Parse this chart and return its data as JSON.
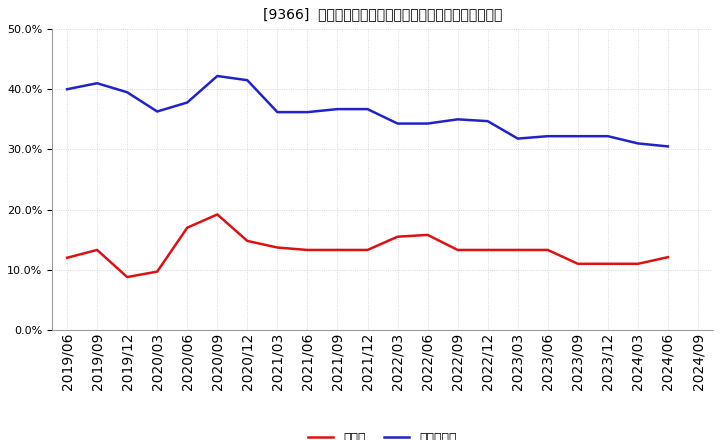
{
  "title": "[9366]  現預金、有利子負債の総資産に対する比率の推移",
  "x_labels": [
    "2019/06",
    "2019/09",
    "2019/12",
    "2020/03",
    "2020/06",
    "2020/09",
    "2020/12",
    "2021/03",
    "2021/06",
    "2021/09",
    "2021/12",
    "2022/03",
    "2022/06",
    "2022/09",
    "2022/12",
    "2023/03",
    "2023/06",
    "2023/09",
    "2023/12",
    "2024/03",
    "2024/06",
    "2024/09"
  ],
  "cash": [
    0.12,
    0.133,
    0.088,
    0.097,
    0.17,
    0.192,
    0.148,
    0.137,
    0.133,
    0.133,
    0.133,
    0.155,
    0.158,
    0.133,
    0.133,
    0.133,
    0.133,
    0.11,
    0.11,
    0.11,
    0.121,
    null
  ],
  "debt": [
    0.4,
    0.41,
    0.395,
    0.363,
    0.378,
    0.422,
    0.415,
    0.362,
    0.362,
    0.367,
    0.367,
    0.343,
    0.343,
    0.35,
    0.347,
    0.318,
    0.322,
    0.322,
    0.322,
    0.31,
    0.305,
    null
  ],
  "cash_color": "#dd1111",
  "debt_color": "#2222cc",
  "background_color": "#ffffff",
  "grid_color": "#cccccc",
  "ylim": [
    0.0,
    0.5
  ],
  "yticks": [
    0.0,
    0.1,
    0.2,
    0.3,
    0.4,
    0.5
  ],
  "legend_cash": "現預金",
  "legend_debt": "有利子負債"
}
